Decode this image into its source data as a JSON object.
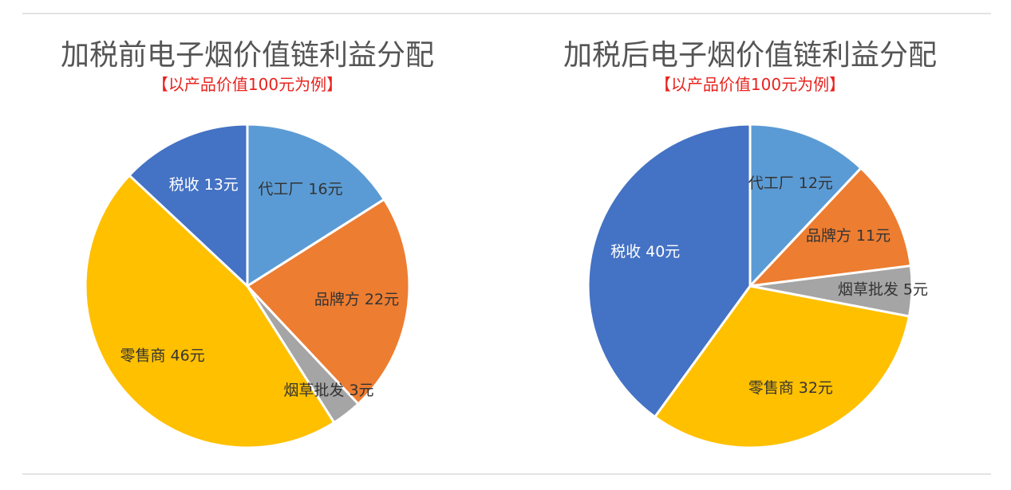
{
  "chart_data": [
    {
      "type": "pie",
      "title": "加税前电子烟价值链利益分配",
      "subtitle": "【以产品价值100元为例】",
      "slices": [
        {
          "label": "代工厂 16元",
          "value": 16,
          "color": "#5b9bd5",
          "text_color": "#333333"
        },
        {
          "label": "品牌方 22元",
          "value": 22,
          "color": "#ed7d31",
          "text_color": "#333333"
        },
        {
          "label": "烟草批发 3元",
          "value": 3,
          "color": "#a5a5a5",
          "text_color": "#333333"
        },
        {
          "label": "零售商 46元",
          "value": 46,
          "color": "#ffc000",
          "text_color": "#333333"
        },
        {
          "label": "税收 13元",
          "value": 13,
          "color": "#4472c4",
          "text_color": "#ffffff"
        }
      ]
    },
    {
      "type": "pie",
      "title": "加税后电子烟价值链利益分配",
      "subtitle": "【以产品价值100元为例】",
      "slices": [
        {
          "label": "代工厂 12元",
          "value": 12,
          "color": "#5b9bd5",
          "text_color": "#333333"
        },
        {
          "label": "品牌方 11元",
          "value": 11,
          "color": "#ed7d31",
          "text_color": "#333333"
        },
        {
          "label": "烟草批发 5元",
          "value": 5,
          "color": "#a5a5a5",
          "text_color": "#333333"
        },
        {
          "label": "零售商 32元",
          "value": 32,
          "color": "#ffc000",
          "text_color": "#333333"
        },
        {
          "label": "税收 40元",
          "value": 40,
          "color": "#4472c4",
          "text_color": "#ffffff"
        }
      ]
    }
  ]
}
